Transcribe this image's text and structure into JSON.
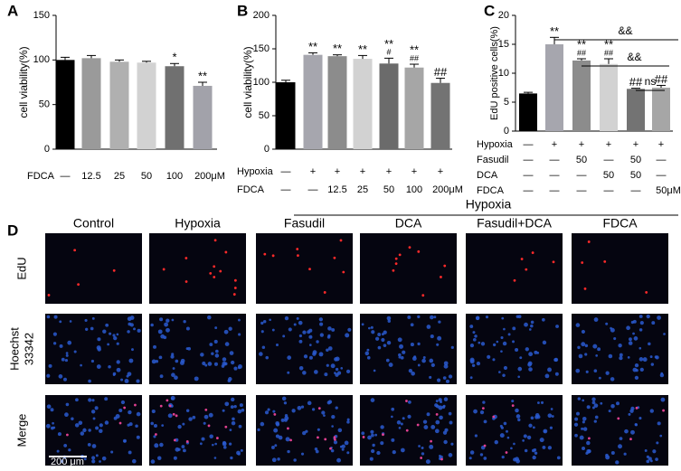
{
  "chart_data": [
    {
      "type": "bar",
      "panel": "A",
      "ylabel": "cell viability(%)",
      "ylim": [
        0,
        150
      ],
      "yticks": [
        0,
        50,
        100,
        150
      ],
      "values": [
        100,
        102,
        98,
        97,
        93,
        71
      ],
      "errors": [
        3,
        3,
        2,
        1.5,
        3,
        4
      ],
      "colors": [
        "#000000",
        "#9a9a9a",
        "#b0b0b0",
        "#d2d2d2",
        "#707070",
        "#a2a2aa"
      ],
      "annotations": [
        [],
        [],
        [],
        [],
        [
          "*"
        ],
        [
          "**"
        ]
      ],
      "rows": [
        {
          "name": "FDCA",
          "labels": [
            "—",
            "12.5",
            "25",
            "50",
            "100",
            "200μM"
          ]
        }
      ]
    },
    {
      "type": "bar",
      "panel": "B",
      "ylabel": "cell viability(%)",
      "ylim": [
        0,
        200
      ],
      "yticks": [
        0,
        50,
        100,
        150,
        200
      ],
      "values": [
        100,
        141,
        139,
        135,
        128,
        122,
        99
      ],
      "errors": [
        3,
        3,
        2,
        5,
        8,
        5,
        7
      ],
      "colors": [
        "#000000",
        "#a6a6ae",
        "#8c8c8c",
        "#d2d2d2",
        "#6b6b6b",
        "#a6a6a6",
        "#737373"
      ],
      "annotations": [
        [],
        [
          "**"
        ],
        [
          "**"
        ],
        [
          "**"
        ],
        [
          "**",
          "#"
        ],
        [
          "**",
          "##"
        ],
        [
          "##"
        ]
      ],
      "rows": [
        {
          "name": "Hypoxia",
          "labels": [
            "—",
            "+",
            "+",
            "+",
            "+",
            "+",
            "+"
          ]
        },
        {
          "name": "FDCA",
          "labels": [
            "—",
            "—",
            "12.5",
            "25",
            "50",
            "100",
            "200μM"
          ]
        }
      ]
    },
    {
      "type": "bar",
      "panel": "C",
      "ylabel": "EdU positive cells(%)",
      "ylim": [
        0,
        20
      ],
      "yticks": [
        0,
        5,
        10,
        15,
        20
      ],
      "values": [
        6.5,
        15,
        12.2,
        11.6,
        7.3,
        7.5
      ],
      "errors": [
        0.2,
        1.2,
        0.3,
        0.9,
        0.1,
        0.4
      ],
      "colors": [
        "#000000",
        "#a6a6ae",
        "#8c8c8c",
        "#d2d2d2",
        "#737373",
        "#a6a6a6"
      ],
      "annotations": [
        [],
        [
          "**"
        ],
        [
          "**",
          "##"
        ],
        [
          "**",
          "##"
        ],
        [
          "##"
        ],
        [
          "##"
        ]
      ],
      "comparisons": [
        "&&",
        "&&",
        "ns"
      ],
      "rows": [
        {
          "name": "Hypoxia",
          "labels": [
            "—",
            "+",
            "+",
            "+",
            "+",
            "+"
          ]
        },
        {
          "name": "Fasudil",
          "labels": [
            "—",
            "—",
            "50",
            "—",
            "50",
            "—"
          ]
        },
        {
          "name": "DCA",
          "labels": [
            "—",
            "—",
            "—",
            "50",
            "50",
            "—"
          ]
        },
        {
          "name": "FDCA",
          "labels": [
            "—",
            "—",
            "—",
            "—",
            "—",
            "50μM"
          ]
        }
      ]
    }
  ],
  "panel_d": {
    "panel": "D",
    "group_label": "Hypoxia",
    "columns": [
      "Control",
      "Hypoxia",
      "Fasudil",
      "DCA",
      "Fasudil+DCA",
      "FDCA"
    ],
    "rows": [
      [
        "EdU"
      ],
      [
        "Hoechst",
        "33342"
      ],
      [
        "Merge"
      ]
    ],
    "scale_bar": "200 μm"
  }
}
